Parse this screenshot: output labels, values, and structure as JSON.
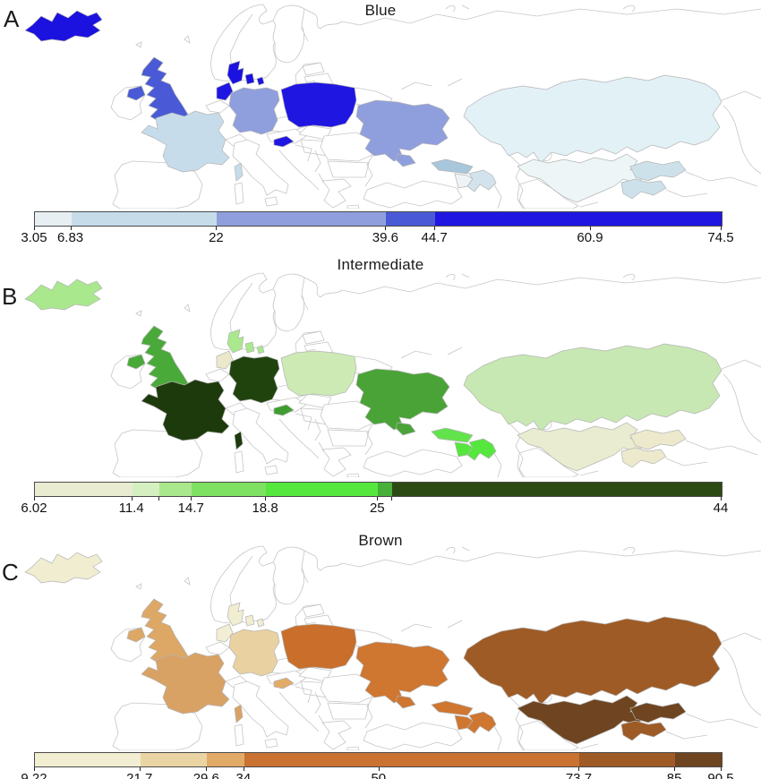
{
  "figure": {
    "background": "#ffffff",
    "map_outline_color": "#c6c6c6",
    "country_outline_color": "#b4b4b4",
    "panels": [
      {
        "letter": "A",
        "title": "Blue",
        "colorbar": {
          "min": 3.05,
          "max": 74.5,
          "segments": [
            {
              "from": 3.05,
              "to": 6.83,
              "color": "#e8eff2"
            },
            {
              "from": 6.83,
              "to": 22,
              "color": "#c6dce9"
            },
            {
              "from": 22,
              "to": 39.6,
              "color": "#8f9fdd"
            },
            {
              "from": 39.6,
              "to": 44.7,
              "color": "#4a5ad6"
            },
            {
              "from": 44.7,
              "to": 74.5,
              "color": "#2016e2"
            }
          ],
          "ticks": [
            {
              "value": 3.05,
              "label": "3.05"
            },
            {
              "value": 6.83,
              "label": "6.83"
            },
            {
              "value": 22,
              "label": "22"
            },
            {
              "value": 39.6,
              "label": "39.6"
            },
            {
              "value": 44.7,
              "label": "44.7"
            },
            {
              "value": 60.9,
              "label": "60.9"
            },
            {
              "value": 74.5,
              "label": "74.5"
            }
          ]
        },
        "countries": {
          "iceland": "#1b12e0",
          "united-kingdom": "#4a5ad6",
          "northern-ireland": "#4a5ad6",
          "france": "#c6dcea",
          "corsica": "#c6dcea",
          "netherlands": "#1f17e1",
          "denmark": "#1b12e0",
          "germany": "#8f9fdd",
          "poland": "#2016e2",
          "slovenia": "#2016e2",
          "ukraine": "#8f9fdd",
          "georgia": "#a8c6dc",
          "azerbaijan": "#d2e3ed",
          "armenia": "#eef4f6",
          "kazakhstan": "#e2f1f6",
          "uzbekistan": "#edf5f7",
          "kyrgyzstan": "#cde1ea",
          "tajikistan": "#cde1ea"
        }
      },
      {
        "letter": "B",
        "title": "Intermediate",
        "colorbar": {
          "min": 6.02,
          "max": 44,
          "segments": [
            {
              "from": 6.02,
              "to": 11.4,
              "color": "#e9ecd1"
            },
            {
              "from": 11.4,
              "to": 12.9,
              "color": "#d5f0c0"
            },
            {
              "from": 12.9,
              "to": 14.7,
              "color": "#a9e88d"
            },
            {
              "from": 14.7,
              "to": 18.8,
              "color": "#7ee161"
            },
            {
              "from": 18.8,
              "to": 25,
              "color": "#55e73d"
            },
            {
              "from": 25,
              "to": 25.8,
              "color": "#46b038"
            },
            {
              "from": 25.8,
              "to": 44,
              "color": "#2c4a13"
            }
          ],
          "ticks": [
            {
              "value": 6.02,
              "label": "6.02"
            },
            {
              "value": 11.4,
              "label": "11.4"
            },
            {
              "value": 12.9,
              "label": ""
            },
            {
              "value": 14.7,
              "label": "14.7"
            },
            {
              "value": 18.8,
              "label": "18.8"
            },
            {
              "value": 25,
              "label": "25"
            },
            {
              "value": 25.8,
              "label": ""
            },
            {
              "value": 44,
              "label": "44"
            }
          ]
        },
        "countries": {
          "iceland": "#a9e88d",
          "united-kingdom": "#4aaa39",
          "northern-ireland": "#4aaa39",
          "france": "#1d3a0c",
          "corsica": "#1d3a0c",
          "netherlands": "#ebe8cb",
          "denmark": "#a9e88d",
          "germany": "#20430e",
          "poland": "#cdeab5",
          "slovenia": "#3f9e30",
          "ukraine": "#4aa336",
          "georgia": "#63e34b",
          "azerbaijan": "#55e73d",
          "armenia": "#55e73d",
          "kazakhstan": "#c7e8b2",
          "uzbekistan": "#e9ecd0",
          "kyrgyzstan": "#ece9cd",
          "tajikistan": "#ece9cd"
        }
      },
      {
        "letter": "C",
        "title": "Brown",
        "colorbar": {
          "min": 9.22,
          "max": 90.5,
          "segments": [
            {
              "from": 9.22,
              "to": 21.7,
              "color": "#f1eed2"
            },
            {
              "from": 21.7,
              "to": 29.6,
              "color": "#ebd4a3"
            },
            {
              "from": 29.6,
              "to": 34,
              "color": "#e2aa67"
            },
            {
              "from": 34,
              "to": 73.7,
              "color": "#c97231"
            },
            {
              "from": 73.7,
              "to": 85,
              "color": "#9e5b25"
            },
            {
              "from": 85,
              "to": 90.5,
              "color": "#6e4520"
            }
          ],
          "ticks": [
            {
              "value": 9.22,
              "label": "9.22"
            },
            {
              "value": 21.7,
              "label": "21.7"
            },
            {
              "value": 29.6,
              "label": "29.6"
            },
            {
              "value": 34,
              "label": "34"
            },
            {
              "value": 50,
              "label": "50"
            },
            {
              "value": 73.7,
              "label": "73.7"
            },
            {
              "value": 85,
              "label": "85"
            },
            {
              "value": 90.5,
              "label": "90.5"
            }
          ]
        },
        "countries": {
          "iceland": "#f0edd1",
          "united-kingdom": "#dda766",
          "northern-ireland": "#dda766",
          "france": "#d9a265",
          "corsica": "#d9a265",
          "netherlands": "#f1eed3",
          "denmark": "#f0edd1",
          "germany": "#e9d1a1",
          "poland": "#c96f2b",
          "slovenia": "#e2ab69",
          "ukraine": "#cf7630",
          "georgia": "#cf7630",
          "azerbaijan": "#cf7630",
          "armenia": "#cf7630",
          "kazakhstan": "#9e5b25",
          "uzbekistan": "#6e4520",
          "kyrgyzstan": "#6e4520",
          "tajikistan": "#9e5b25"
        }
      }
    ]
  }
}
